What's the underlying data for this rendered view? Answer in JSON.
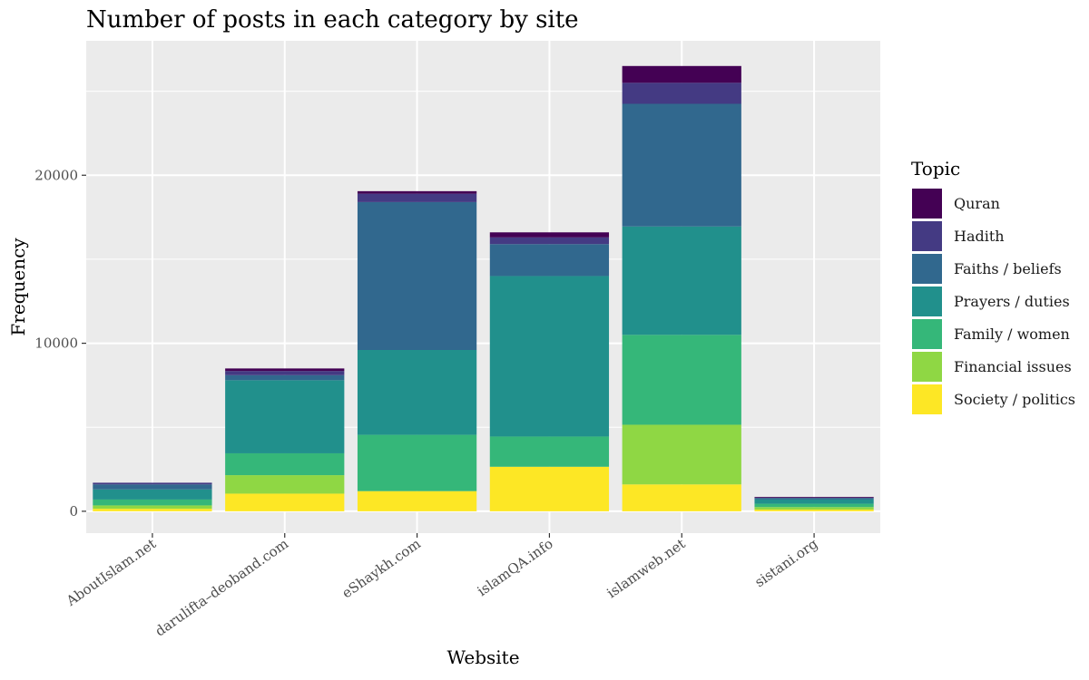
{
  "chart_data": {
    "type": "bar",
    "stacked": true,
    "title": "Number of posts in each category by site",
    "xlabel": "Website",
    "ylabel": "Frequency",
    "ylim": [
      -1300,
      28000
    ],
    "yticks": [
      0,
      10000,
      20000
    ],
    "grid": true,
    "legend": {
      "title": "Topic",
      "placement": "right"
    },
    "categories": [
      "AboutIslam.net",
      "darulifta–deoband.com",
      "eShaykh.com",
      "islamQA.info",
      "islamweb.net",
      "sistani.org"
    ],
    "series": [
      {
        "name": "Society / politics",
        "color": "#FDE725",
        "values": [
          150,
          1050,
          1200,
          2650,
          1600,
          100
        ]
      },
      {
        "name": "Financial issues",
        "color": "#8FD744",
        "values": [
          200,
          1100,
          0,
          0,
          3550,
          150
        ]
      },
      {
        "name": "Family / women",
        "color": "#35B779",
        "values": [
          350,
          1300,
          3350,
          1800,
          5350,
          200
        ]
      },
      {
        "name": "Prayers / duties",
        "color": "#21908C",
        "values": [
          600,
          4350,
          5050,
          9550,
          6450,
          250
        ]
      },
      {
        "name": "Faiths / beliefs",
        "color": "#31688E",
        "values": [
          300,
          300,
          8800,
          1900,
          7300,
          100
        ]
      },
      {
        "name": "Hadith",
        "color": "#443A83",
        "values": [
          100,
          250,
          500,
          400,
          1250,
          0
        ]
      },
      {
        "name": "Quran",
        "color": "#440154",
        "values": [
          0,
          150,
          150,
          300,
          1000,
          50
        ]
      }
    ]
  }
}
